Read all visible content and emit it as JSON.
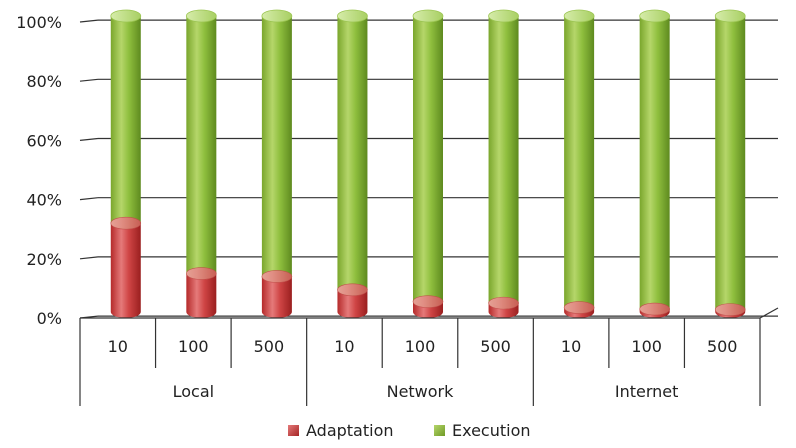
{
  "chart_data": {
    "type": "bar",
    "stacked": true,
    "percent": true,
    "style": "3d-cylinder",
    "groups": [
      {
        "label": "Local",
        "categories": [
          "10",
          "100",
          "500"
        ]
      },
      {
        "label": "Network",
        "categories": [
          "10",
          "100",
          "500"
        ]
      },
      {
        "label": "Internet",
        "categories": [
          "10",
          "100",
          "500"
        ]
      }
    ],
    "series": [
      {
        "name": "Adaptation",
        "color": "#c0392b",
        "values": [
          30,
          13,
          12,
          7.5,
          3.5,
          3,
          1.5,
          1,
          0.8
        ]
      },
      {
        "name": "Execution",
        "color": "#8db43a",
        "values": [
          70,
          87,
          88,
          92.5,
          96.5,
          97,
          98.5,
          99,
          99.2
        ]
      }
    ],
    "ylim": [
      0,
      100
    ],
    "yticks": [
      "0%",
      "20%",
      "40%",
      "60%",
      "80%",
      "100%"
    ],
    "grid": true,
    "legend_position": "bottom"
  }
}
